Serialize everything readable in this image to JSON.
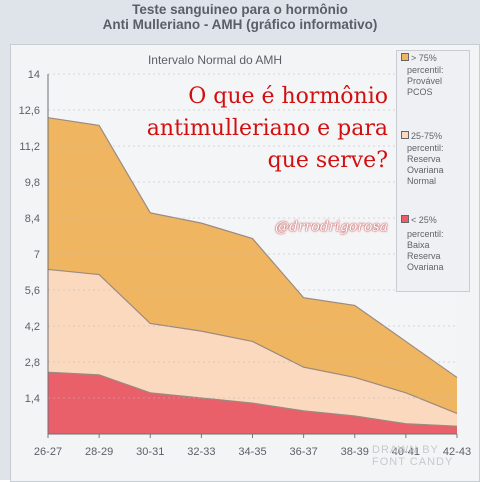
{
  "header": {
    "title_line1": "Teste sanguineo para o hormônio",
    "title_line2": "Anti Mulleriano - AMH (gráfico informativo)"
  },
  "overlay": {
    "line1": "O que é hormônio",
    "line2": "antimulleriano e para",
    "line3": "que serve?",
    "handle": "@drrodrigorosa"
  },
  "legend": {
    "items": [
      {
        "head": "> 75%",
        "lines": [
          "percentil:",
          "Provável",
          "PCOS"
        ],
        "color": "#f0b560"
      },
      {
        "head": "25-75%",
        "lines": [
          "percentil:",
          "Reserva",
          "Ovariana",
          "Normal"
        ],
        "color": "#fbd9bf"
      },
      {
        "head": "< 25%",
        "lines": [
          "percentil:",
          "Baixa",
          "Reserva",
          "Ovariana"
        ],
        "color": "#e9606a"
      }
    ]
  },
  "watermark": {
    "line1": "DRAWN BY",
    "line2": "FONT CANDY"
  },
  "chart_data": {
    "type": "area",
    "title": "Intervalo Normal do AMH",
    "categories": [
      "26-27",
      "28-29",
      "30-31",
      "32-33",
      "34-35",
      "36-37",
      "38-39",
      "40-41",
      "42-43"
    ],
    "y_ticks": [
      "1,4",
      "2,8",
      "4,2",
      "5,6",
      "7",
      "8,4",
      "9,8",
      "11,2",
      "12,6",
      "14"
    ],
    "ylim": [
      0,
      14
    ],
    "series": [
      {
        "color": "#e9606a",
        "values": [
          2.4,
          2.3,
          1.6,
          1.4,
          1.2,
          0.9,
          0.7,
          0.4,
          0.3
        ]
      },
      {
        "color": "#fbd9bf",
        "values": [
          6.4,
          6.2,
          4.3,
          4.0,
          3.6,
          2.6,
          2.2,
          1.6,
          0.8
        ]
      },
      {
        "color": "#f0b560",
        "values": [
          12.3,
          12.0,
          8.6,
          8.2,
          7.6,
          5.3,
          5.0,
          3.6,
          2.2
        ]
      }
    ],
    "grid": true,
    "legend_position": "right"
  }
}
